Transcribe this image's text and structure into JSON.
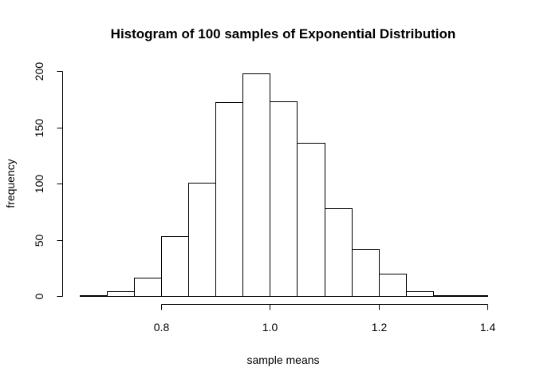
{
  "chart_data": {
    "type": "bar",
    "title": "Histogram of 100 samples of Exponential Distribution",
    "xlabel": "sample means",
    "ylabel": "frequency",
    "bin_width": 0.05,
    "bins": [
      {
        "start": 0.65,
        "end": 0.7,
        "count": 1
      },
      {
        "start": 0.7,
        "end": 0.75,
        "count": 4
      },
      {
        "start": 0.75,
        "end": 0.8,
        "count": 16
      },
      {
        "start": 0.8,
        "end": 0.85,
        "count": 53
      },
      {
        "start": 0.85,
        "end": 0.9,
        "count": 101
      },
      {
        "start": 0.9,
        "end": 0.95,
        "count": 172
      },
      {
        "start": 0.95,
        "end": 1.0,
        "count": 198
      },
      {
        "start": 1.0,
        "end": 1.05,
        "count": 173
      },
      {
        "start": 1.05,
        "end": 1.1,
        "count": 136
      },
      {
        "start": 1.1,
        "end": 1.15,
        "count": 78
      },
      {
        "start": 1.15,
        "end": 1.2,
        "count": 42
      },
      {
        "start": 1.2,
        "end": 1.25,
        "count": 20
      },
      {
        "start": 1.25,
        "end": 1.3,
        "count": 4
      },
      {
        "start": 1.3,
        "end": 1.35,
        "count": 1
      },
      {
        "start": 1.35,
        "end": 1.4,
        "count": 1
      }
    ],
    "xlim": [
      0.65,
      1.4
    ],
    "ylim": [
      0,
      200
    ],
    "x_ticks": [
      {
        "value": 0.8,
        "label": "0.8"
      },
      {
        "value": 1.0,
        "label": "1.0"
      },
      {
        "value": 1.2,
        "label": "1.2"
      },
      {
        "value": 1.4,
        "label": "1.4"
      }
    ],
    "y_ticks": [
      {
        "value": 0,
        "label": "0"
      },
      {
        "value": 50,
        "label": "50"
      },
      {
        "value": 100,
        "label": "100"
      },
      {
        "value": 150,
        "label": "150"
      },
      {
        "value": 200,
        "label": "200"
      }
    ],
    "grid": false,
    "legend": "none",
    "bar_fill": "#ffffff",
    "bar_stroke": "#000000"
  }
}
